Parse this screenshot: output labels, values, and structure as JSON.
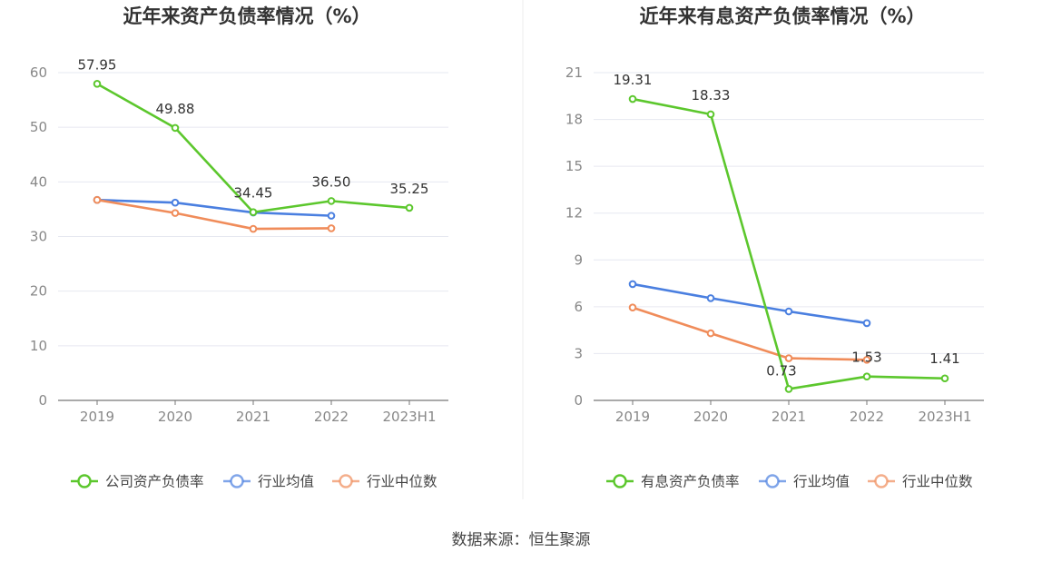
{
  "chart_data": [
    {
      "type": "line",
      "title": "近年来资产负债率情况（%）",
      "categories": [
        "2019",
        "2020",
        "2021",
        "2022",
        "2023H1"
      ],
      "ylim": [
        0,
        60
      ],
      "yticks": [
        0,
        10,
        20,
        30,
        40,
        50,
        60
      ],
      "grid": true,
      "legend_position": "bottom",
      "series": [
        {
          "name": "公司资产负债率",
          "color": "#5cc72d",
          "values": [
            57.95,
            49.88,
            34.45,
            36.5,
            35.25
          ],
          "labels": [
            "57.95",
            "49.88",
            "34.45",
            "36.50",
            "35.25"
          ]
        },
        {
          "name": "行业均值",
          "color": "#4a7fe0",
          "values": [
            36.7,
            36.2,
            34.4,
            33.8,
            null
          ]
        },
        {
          "name": "行业中位数",
          "color": "#f08c5a",
          "values": [
            36.7,
            34.3,
            31.4,
            31.5,
            null
          ]
        }
      ]
    },
    {
      "type": "line",
      "title": "近年来有息资产负债率情况（%）",
      "categories": [
        "2019",
        "2020",
        "2021",
        "2022",
        "2023H1"
      ],
      "ylim": [
        0,
        21
      ],
      "yticks": [
        0,
        3,
        6,
        9,
        12,
        15,
        18,
        21
      ],
      "grid": true,
      "legend_position": "bottom",
      "series": [
        {
          "name": "有息资产负债率",
          "color": "#5cc72d",
          "values": [
            19.31,
            18.33,
            0.73,
            1.53,
            1.41
          ],
          "labels": [
            "19.31",
            "18.33",
            "0.73",
            "1.53",
            "1.41"
          ]
        },
        {
          "name": "行业均值",
          "color": "#4a7fe0",
          "values": [
            7.45,
            6.55,
            5.7,
            4.95,
            null
          ]
        },
        {
          "name": "行业中位数",
          "color": "#f08c5a",
          "values": [
            5.95,
            4.3,
            2.7,
            2.6,
            null
          ]
        }
      ]
    }
  ],
  "footer": {
    "source": "数据来源：恒生聚源"
  }
}
